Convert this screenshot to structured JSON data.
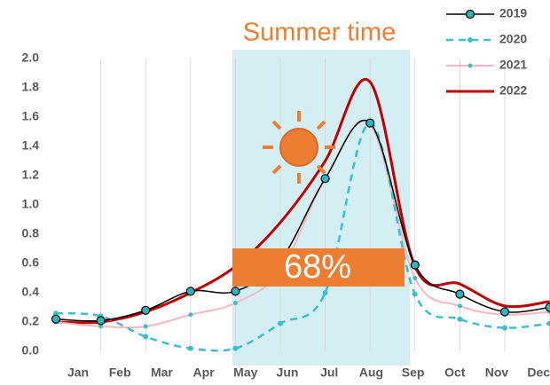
{
  "chart_data": {
    "type": "line",
    "categories": [
      "Jan",
      "Feb",
      "Mar",
      "Apr",
      "May",
      "Jun",
      "Jul",
      "Aug",
      "Sep",
      "Oct",
      "Nov",
      "Dec"
    ],
    "series": [
      {
        "name": "2019",
        "color": "#000000",
        "values": [
          0.22,
          0.21,
          0.28,
          0.41,
          0.41,
          0.62,
          1.18,
          1.56,
          0.59,
          0.39,
          0.27,
          0.3
        ]
      },
      {
        "name": "2020",
        "color": "#3bbfcf",
        "values": [
          0.26,
          0.24,
          0.1,
          0.02,
          0.02,
          0.19,
          0.4,
          1.56,
          0.39,
          0.22,
          0.16,
          0.19
        ]
      },
      {
        "name": "2021",
        "color": "#f6b8bf",
        "values": [
          0.2,
          0.17,
          0.17,
          0.25,
          0.33,
          0.55,
          1.18,
          1.55,
          0.5,
          0.31,
          0.25,
          0.27
        ]
      },
      {
        "name": "2022",
        "color": "#c00000",
        "values": [
          0.2,
          0.2,
          0.27,
          0.4,
          0.58,
          0.88,
          1.3,
          1.84,
          0.58,
          0.46,
          0.31,
          0.34
        ]
      }
    ],
    "ylim": [
      0,
      2
    ],
    "yticks": [
      {
        "value": 0,
        "label": "0.0"
      },
      {
        "value": 0.2,
        "label": "0.2"
      },
      {
        "value": 0.4,
        "label": "0.4"
      },
      {
        "value": 0.6,
        "label": "0.6"
      },
      {
        "value": 0.8,
        "label": "0.8"
      },
      {
        "value": 1,
        "label": "1.0"
      },
      {
        "value": 1.2,
        "label": "1.2"
      },
      {
        "value": 1.4,
        "label": "1.4"
      },
      {
        "value": 1.6,
        "label": "1.6"
      },
      {
        "value": 1.8,
        "label": "1.8"
      },
      {
        "value": 2,
        "label": "2.0"
      }
    ],
    "annotations": [
      "Summer time",
      "68%"
    ]
  }
}
